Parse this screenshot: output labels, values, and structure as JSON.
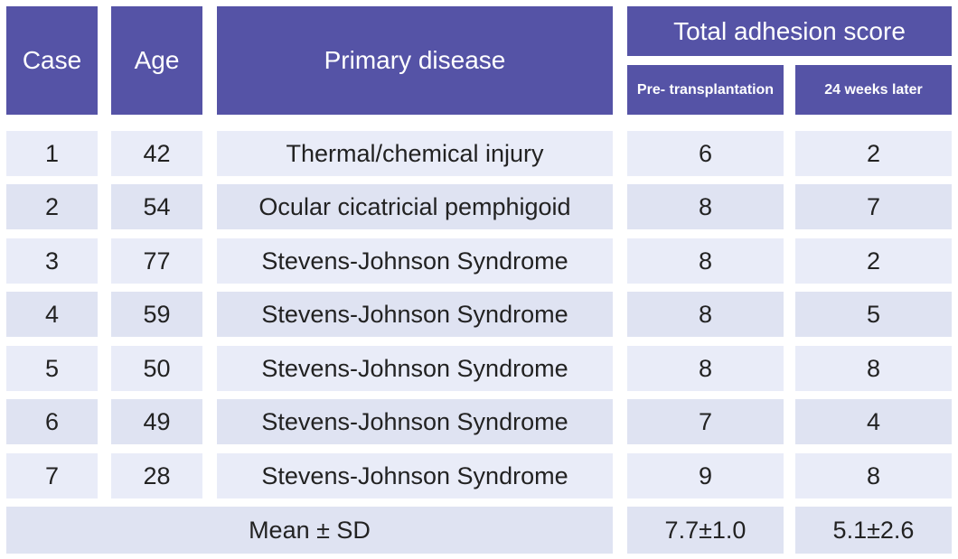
{
  "header": {
    "case": "Case",
    "age": "Age",
    "primary_disease": "Primary disease",
    "total_adhesion_score": "Total adhesion score",
    "pre_transplantation": "Pre- transplantation",
    "weeks_later": "24 weeks later"
  },
  "rows": [
    {
      "case": "1",
      "age": "42",
      "disease": "Thermal/chemical injury",
      "pre": "6",
      "post": "2"
    },
    {
      "case": "2",
      "age": "54",
      "disease": "Ocular cicatricial pemphigoid",
      "pre": "8",
      "post": "7"
    },
    {
      "case": "3",
      "age": "77",
      "disease": "Stevens-Johnson Syndrome",
      "pre": "8",
      "post": "2"
    },
    {
      "case": "4",
      "age": "59",
      "disease": "Stevens-Johnson Syndrome",
      "pre": "8",
      "post": "5"
    },
    {
      "case": "5",
      "age": "50",
      "disease": "Stevens-Johnson Syndrome",
      "pre": "8",
      "post": "8"
    },
    {
      "case": "6",
      "age": "49",
      "disease": "Stevens-Johnson Syndrome",
      "pre": "7",
      "post": "4"
    },
    {
      "case": "7",
      "age": "28",
      "disease": "Stevens-Johnson Syndrome",
      "pre": "9",
      "post": "8"
    }
  ],
  "summary": {
    "label": "Mean ± SD",
    "pre": "7.7±1.0",
    "post": "5.1±2.6"
  }
}
